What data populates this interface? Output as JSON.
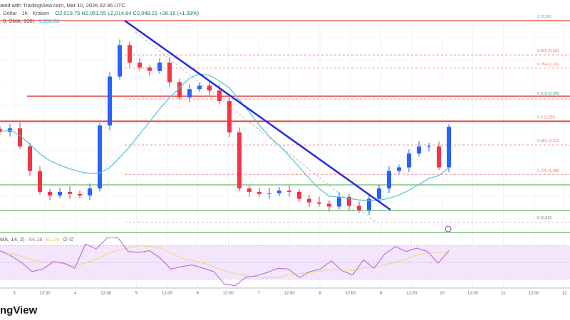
{
  "header": {
    "created": "ated with TradingView.com, Mar 10, 2026 02:36 UTC",
    "symbol": ". Dollar · 1h · Kraken",
    "ohlc": "O2,019.75  H2,051.55  L2,014.64  C2,048.21  +28.16 (+1.39%)",
    "sma_label": ", 0, SMA, 100)",
    "sma_value": "1,996.96",
    "rsi_label": "MA, 14, 2)",
    "rsi_value": "64.18",
    "rsi_ma_value": "61.06",
    "rsi_extra": "∅ ∅"
  },
  "logo": "ngView",
  "colors": {
    "up": "#2962ff",
    "down": "#f23645",
    "sma": "#4fc3d9",
    "trend": "#2b2bdc",
    "rsi": "#b05fd6",
    "rsi_ma": "#f5d76e",
    "support": "#66bb6a",
    "resistance": "#e53935",
    "fib": "#ef6c6c"
  },
  "chart_data": {
    "type": "candlestick",
    "timeframe": "1h",
    "price_range": [
      1905,
      2205
    ],
    "close_series_start": "Mar 2 14:00",
    "close_step_hours": 4,
    "closes": [
      2041,
      2046,
      2020,
      1985,
      1955,
      1950,
      1955,
      1952,
      1950,
      1960,
      2050,
      2120,
      2165,
      2140,
      2133,
      2128,
      2140,
      2112,
      2090,
      2102,
      2107,
      2100,
      2085,
      2040,
      1960,
      1955,
      1952,
      1953,
      1957,
      1955,
      1945,
      1940,
      1938,
      1934,
      1948,
      1935,
      1929,
      1945,
      1960,
      1985,
      1990,
      2010,
      2020,
      2020,
      1990,
      2048
    ],
    "x_tick_labels": [
      "3",
      "12:00",
      "4",
      "12:00",
      "5",
      "12:00",
      "6",
      "12:00",
      "7",
      "12:00",
      "8",
      "12:00",
      "9",
      "12:00",
      "10",
      "12:00",
      "11",
      "12:00",
      "12"
    ],
    "fib_levels": [
      {
        "level": 1,
        "label": "1 (2,200",
        "price": 2200
      },
      {
        "level": 0.832,
        "label": "0.832 (2,151",
        "price": 2151
      },
      {
        "level": 0.764,
        "label": "0.764 (2,132",
        "price": 2132
      },
      {
        "level": 0.618,
        "label": "0.618 (2,090",
        "price": 2090
      },
      {
        "level": 0.5,
        "label": "0.5 (2,056",
        "price": 2056
      },
      {
        "level": 0.382,
        "label": "0.382 (2,022",
        "price": 2022
      },
      {
        "level": 0.236,
        "label": "0.236 (1,980",
        "price": 1980
      },
      {
        "level": 0,
        "label": "0 (1,912",
        "price": 1912
      }
    ],
    "resistance_lines": [
      2200,
      2092,
      2056
    ],
    "support_lines": [
      1965,
      1928
    ],
    "trendline": {
      "from": {
        "date": "Mar 4 15:00",
        "price": 2200
      },
      "to": {
        "date": "Mar 9 05:00",
        "price": 1930
      }
    },
    "rsi": {
      "period": 14,
      "bands": [
        30,
        70
      ],
      "values": [
        64,
        58,
        50,
        39,
        42,
        51,
        49,
        43,
        72,
        66,
        79,
        80,
        63,
        62,
        64,
        55,
        42,
        45,
        47,
        43,
        39,
        24,
        22,
        32,
        34,
        38,
        43,
        42,
        32,
        39,
        42,
        52,
        40,
        35,
        53,
        43,
        60,
        69,
        63,
        67,
        63,
        49,
        64
      ]
    }
  }
}
